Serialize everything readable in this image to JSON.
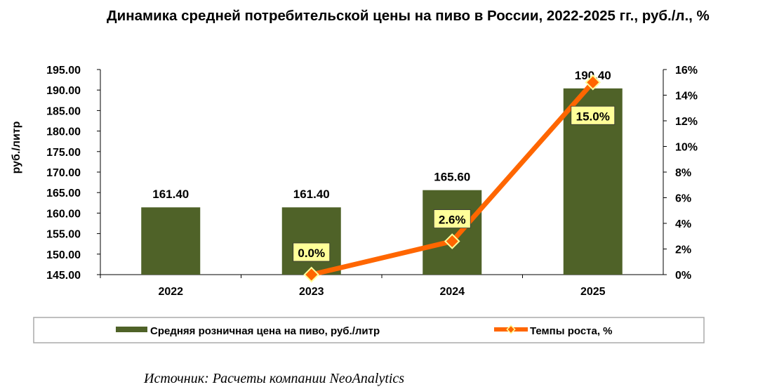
{
  "chart_data": {
    "type": "bar+line",
    "title": "Динамика средней потребительской цены на пиво в России, 2022-2025 гг., руб./л., %",
    "categories": [
      "2022",
      "2023",
      "2024",
      "2025"
    ],
    "ylabel": "руб./литр",
    "ylim": [
      145,
      195
    ],
    "y_ticks": [
      "145.00",
      "150.00",
      "155.00",
      "160.00",
      "165.00",
      "170.00",
      "175.00",
      "180.00",
      "185.00",
      "190.00",
      "195.00"
    ],
    "y2lim": [
      0,
      16
    ],
    "y2_ticks": [
      "0%",
      "2%",
      "4%",
      "6%",
      "8%",
      "10%",
      "12%",
      "14%",
      "16%"
    ],
    "series": [
      {
        "name": "Средняя розничная цена на пиво, руб./литр",
        "kind": "bar",
        "color": "#4f6228",
        "values": [
          161.4,
          161.4,
          165.6,
          190.4
        ],
        "labels": [
          "161.40",
          "161.40",
          "165.60",
          "190.40"
        ]
      },
      {
        "name": "Темпы роста, %",
        "kind": "line",
        "axis": "right",
        "color": "#ff6600",
        "marker_color": "#ffff99",
        "values": [
          null,
          0.0,
          2.6,
          15.0
        ],
        "labels": [
          "",
          "0.0%",
          "2.6%",
          "15.0%"
        ]
      }
    ],
    "legend": "bottom",
    "grid": false
  },
  "source": "Источник: Расчеты компании NeoAnalytics"
}
